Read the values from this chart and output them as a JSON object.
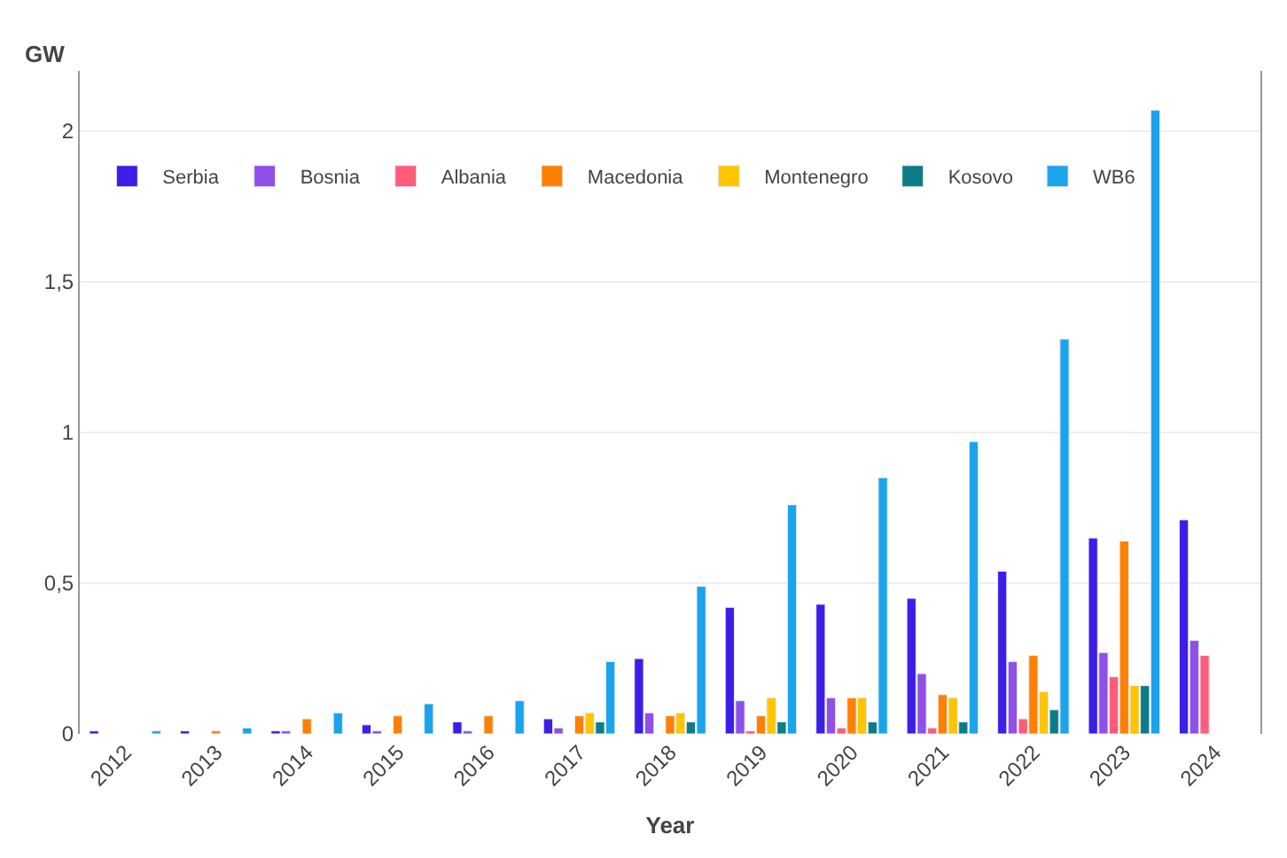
{
  "chart_data": {
    "type": "bar",
    "xlabel": "Year",
    "ylabel": "GW",
    "categories": [
      "2012",
      "2013",
      "2014",
      "2015",
      "2016",
      "2017",
      "2018",
      "2019",
      "2020",
      "2021",
      "2022",
      "2023",
      "2024"
    ],
    "series": [
      {
        "name": "Serbia",
        "color": "#3d1ee6",
        "values": [
          0.01,
          0.01,
          0.01,
          0.03,
          0.04,
          0.05,
          0.25,
          0.42,
          0.43,
          0.45,
          0.54,
          0.65,
          0.71
        ]
      },
      {
        "name": "Bosnia",
        "color": "#8f4fe8",
        "values": [
          null,
          null,
          0.01,
          0.01,
          0.01,
          0.02,
          0.07,
          0.11,
          0.12,
          0.2,
          0.24,
          0.27,
          0.31
        ]
      },
      {
        "name": "Albania",
        "color": "#ff5c7a",
        "values": [
          null,
          null,
          null,
          null,
          null,
          null,
          null,
          0.01,
          0.02,
          0.02,
          0.05,
          0.19,
          0.26
        ]
      },
      {
        "name": "Macedonia",
        "color": "#ff8000",
        "values": [
          null,
          0.01,
          0.05,
          0.06,
          0.06,
          0.06,
          0.06,
          0.06,
          0.12,
          0.13,
          0.26,
          0.64,
          null
        ]
      },
      {
        "name": "Montenegro",
        "color": "#ffc400",
        "values": [
          null,
          null,
          null,
          null,
          null,
          0.07,
          0.07,
          0.12,
          0.12,
          0.12,
          0.14,
          0.16,
          null
        ]
      },
      {
        "name": "Kosovo",
        "color": "#0e7c86",
        "values": [
          null,
          null,
          null,
          null,
          null,
          0.04,
          0.04,
          0.04,
          0.04,
          0.04,
          0.08,
          0.16,
          null
        ]
      },
      {
        "name": "WB6",
        "color": "#1ba3ec",
        "values": [
          0.01,
          0.02,
          0.07,
          0.1,
          0.11,
          0.24,
          0.49,
          0.76,
          0.85,
          0.97,
          1.31,
          2.07,
          null
        ]
      }
    ],
    "ylim": [
      0,
      2.2
    ],
    "yticks": [
      0,
      {
        "value": 0.5,
        "label": "0,5"
      },
      1,
      {
        "value": 1.5,
        "label": "1,5"
      },
      2
    ],
    "grid": "y",
    "legend": "top left"
  }
}
